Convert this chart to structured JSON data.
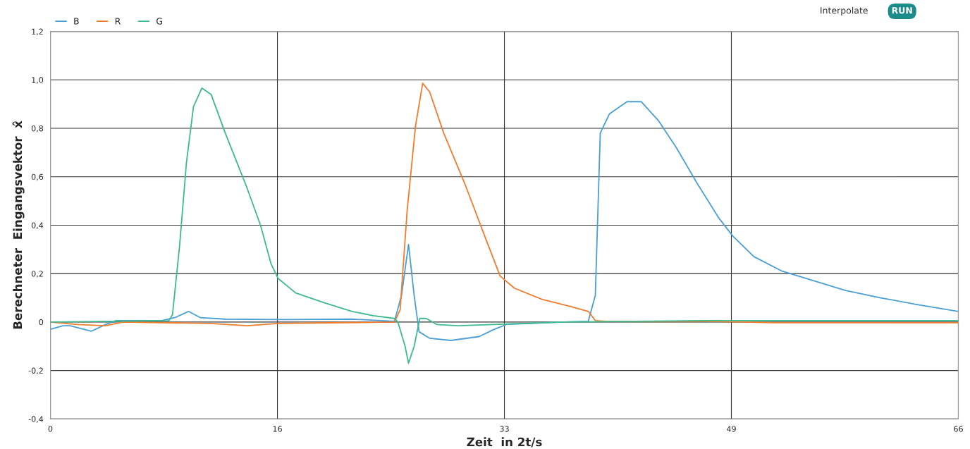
{
  "chart_data": {
    "type": "line",
    "xlabel": "Zeit  in 2t/s",
    "ylabel": "Berechneter  Eingangsvektor  x̂",
    "annotations": [
      "Interpolate",
      "RUN"
    ],
    "xlim": [
      0,
      66
    ],
    "ylim": [
      -0.4,
      1.2
    ],
    "xticks": [
      0,
      {
        "value": 16.5,
        "label": "16"
      },
      33,
      {
        "value": 49.5,
        "label": "49"
      },
      66
    ],
    "yticks": [
      {
        "value": -0.4,
        "label": "-0,4"
      },
      {
        "value": -0.2,
        "label": "-0,2"
      },
      0,
      {
        "value": 0.2,
        "label": "0,2"
      },
      {
        "value": 0.4,
        "label": "0,4"
      },
      {
        "value": 0.6,
        "label": "0,6"
      },
      {
        "value": 0.8,
        "label": "0,8"
      },
      {
        "value": 1.0,
        "label": "1,0"
      },
      {
        "value": 1.2,
        "label": "1,2"
      }
    ],
    "grid": true,
    "legend": "top left",
    "marker": "none",
    "line_style": "solid",
    "series": [
      {
        "name": "B",
        "color": "#4a9fd4",
        "x": [
          0,
          0.92,
          1.43,
          2.97,
          4.0,
          4.77,
          6.56,
          8.1,
          9.12,
          10.04,
          10.91,
          12.71,
          16.81,
          21.93,
          25.01,
          25.52,
          26.03,
          26.44,
          26.8,
          27.57,
          29.11,
          31.16,
          32.18,
          33.2,
          37.31,
          39.1,
          39.61,
          39.97,
          40.64,
          41.92,
          42.94,
          44.22,
          45.5,
          47.04,
          48.58,
          49.6,
          51.14,
          53.19,
          55.75,
          57.8,
          60.36,
          62.93,
          66
        ],
        "values": [
          -0.03,
          -0.015,
          -0.015,
          -0.038,
          -0.01,
          0.006,
          0.006,
          0.006,
          0.02,
          0.044,
          0.018,
          0.012,
          0.01,
          0.012,
          0.003,
          0.11,
          0.32,
          0.11,
          -0.04,
          -0.067,
          -0.076,
          -0.06,
          -0.032,
          -0.009,
          0.0,
          0.003,
          0.11,
          0.78,
          0.86,
          0.91,
          0.91,
          0.83,
          0.72,
          0.57,
          0.43,
          0.355,
          0.27,
          0.21,
          0.166,
          0.13,
          0.1,
          0.073,
          0.044
        ]
      },
      {
        "name": "R",
        "color": "#ee7d2d",
        "x": [
          0,
          1.95,
          4.0,
          5.28,
          11.68,
          14.25,
          16.55,
          25.01,
          25.42,
          25.93,
          26.54,
          27.06,
          27.57,
          28.59,
          30.13,
          31.67,
          32.69,
          33.72,
          35.77,
          37.82,
          39.1,
          39.61,
          40.38,
          47.55,
          52.68,
          66
        ],
        "values": [
          0.0,
          -0.01,
          -0.015,
          0.0,
          -0.006,
          -0.015,
          -0.006,
          0.0,
          0.05,
          0.46,
          0.81,
          0.986,
          0.95,
          0.78,
          0.57,
          0.34,
          0.19,
          0.14,
          0.093,
          0.064,
          0.044,
          0.006,
          0.003,
          0.003,
          -0.003,
          -0.003
        ]
      },
      {
        "name": "G",
        "color": "#3dbb8c",
        "x": [
          0,
          8.61,
          8.87,
          9.38,
          9.89,
          10.4,
          11.01,
          11.68,
          12.71,
          14.25,
          15.27,
          16.04,
          16.55,
          17.83,
          19.88,
          21.93,
          23.47,
          25.01,
          25.26,
          25.78,
          26.03,
          26.44,
          26.85,
          27.31,
          28.08,
          29.62,
          32.18,
          37.31,
          47.55,
          66
        ],
        "values": [
          0.0,
          0.006,
          0.03,
          0.31,
          0.66,
          0.89,
          0.966,
          0.94,
          0.78,
          0.56,
          0.4,
          0.24,
          0.18,
          0.12,
          0.08,
          0.044,
          0.026,
          0.015,
          0.0,
          -0.1,
          -0.17,
          -0.1,
          0.015,
          0.015,
          -0.01,
          -0.015,
          -0.01,
          0.0,
          0.006,
          0.006
        ]
      }
    ]
  }
}
